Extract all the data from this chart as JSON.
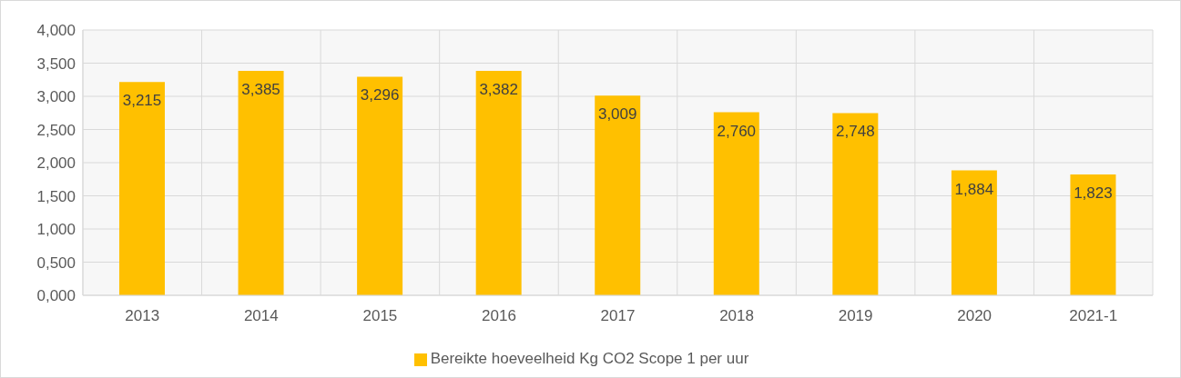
{
  "chart_data": {
    "type": "bar",
    "categories": [
      "2013",
      "2014",
      "2015",
      "2016",
      "2017",
      "2018",
      "2019",
      "2020",
      "2021-1"
    ],
    "series": [
      {
        "name": "Bereikte hoeveelheid Kg CO2 Scope 1 per uur",
        "color": "#ffc000",
        "values": [
          3.215,
          3.385,
          3.296,
          3.382,
          3.009,
          2.76,
          2.748,
          1.884,
          1.823
        ],
        "value_labels": [
          "3,215",
          "3,385",
          "3,296",
          "3,382",
          "3,009",
          "2,760",
          "2,748",
          "1,884",
          "1,823"
        ]
      }
    ],
    "ylim": [
      0,
      4
    ],
    "yticks": [
      {
        "value": 0,
        "label": "0,000"
      },
      {
        "value": 0.5,
        "label": "0,500"
      },
      {
        "value": 1,
        "label": "1,000"
      },
      {
        "value": 1.5,
        "label": "1,500"
      },
      {
        "value": 2,
        "label": "2,000"
      },
      {
        "value": 2.5,
        "label": "2,500"
      },
      {
        "value": 3,
        "label": "3,000"
      },
      {
        "value": 3.5,
        "label": "3,500"
      },
      {
        "value": 4,
        "label": "4,000"
      }
    ],
    "grid": true,
    "legend": "bottom"
  }
}
